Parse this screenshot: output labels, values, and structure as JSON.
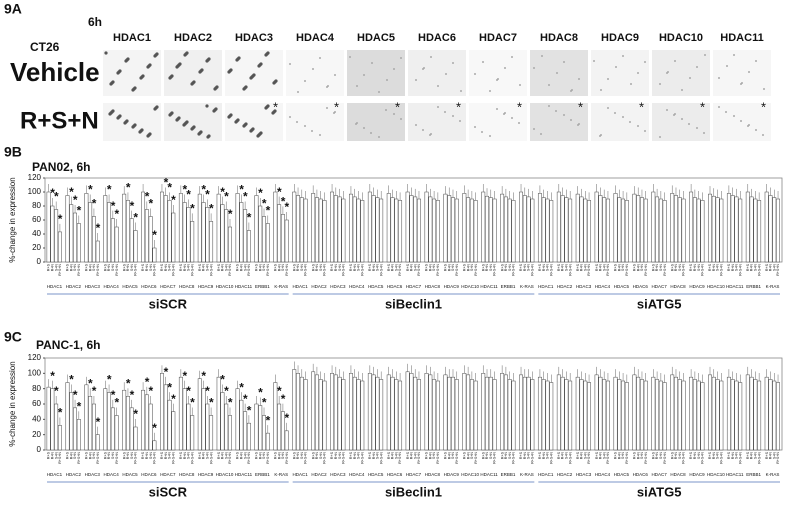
{
  "panel_a": {
    "label": "9A",
    "time": "6h",
    "cell_line": "CT26",
    "rows": [
      "Vehicle",
      "R+S+N"
    ],
    "columns": [
      "HDAC1",
      "HDAC2",
      "HDAC3",
      "HDAC4",
      "HDAC5",
      "HDAC6",
      "HDAC7",
      "HDAC8",
      "HDAC9",
      "HDAC10",
      "HDAC11"
    ],
    "star": "*",
    "starred_columns": [
      2,
      3,
      4,
      5,
      6,
      7,
      8,
      9,
      10
    ]
  },
  "chart_data": [
    {
      "type": "bar",
      "panel": "9B",
      "title": "PAN02, 6h",
      "ylabel": "%-change in expression",
      "ylim": [
        0,
        120
      ],
      "yticks": [
        0,
        20,
        40,
        60,
        80,
        100,
        120
      ],
      "groups": [
        "siSCR",
        "siBeclin1",
        "siATG5"
      ],
      "categories": [
        "HDAC1",
        "HDAC2",
        "HDAC3",
        "HDAC4",
        "HDAC5",
        "HDAC6",
        "HDAC7",
        "HDAC8",
        "HDAC9",
        "HDAC10",
        "HDAC11",
        "ERBB1",
        "K-RAS",
        "HDAC1",
        "HDAC2",
        "HDAC3",
        "HDAC4",
        "HDAC5",
        "HDAC6",
        "HDAC7",
        "HDAC8",
        "HDAC9",
        "HDAC10",
        "HDAC11",
        "ERBB1",
        "K-RAS",
        "HDAC1",
        "HDAC2",
        "HDAC3",
        "HDAC4",
        "HDAC5",
        "HDAC6",
        "HDAC7",
        "HDAC8",
        "HDAC9",
        "HDAC10",
        "HDAC11",
        "ERBB1",
        "K-RAS"
      ],
      "star": "*",
      "series": [
        {
          "name": "R+S",
          "color": "#ffffff",
          "starred": [],
          "values": [
            100,
            95,
            98,
            95,
            97,
            100,
            100,
            98,
            97,
            97,
            98,
            95,
            100,
            100,
            98,
            100,
            97,
            100,
            98,
            100,
            100,
            97,
            98,
            100,
            97,
            100,
            98,
            100,
            97,
            100,
            98,
            97,
            100,
            98,
            100,
            97,
            98,
            100,
            100
          ]
        },
        {
          "name": "R+N",
          "color": "#ffffff",
          "starred": [
            0,
            1,
            2,
            3,
            4,
            5,
            6,
            7,
            8,
            9,
            10,
            11,
            12
          ],
          "values": [
            80,
            82,
            85,
            85,
            88,
            75,
            95,
            85,
            85,
            82,
            85,
            80,
            82,
            95,
            92,
            95,
            93,
            95,
            92,
            95,
            93,
            95,
            92,
            94,
            93,
            95,
            92,
            95,
            93,
            95,
            92,
            95,
            93,
            95,
            92,
            94,
            95,
            93,
            95
          ]
        },
        {
          "name": "S+N",
          "color": "#ffffff",
          "starred": [
            0,
            1,
            2,
            3,
            4,
            5,
            6,
            7,
            8,
            9,
            10,
            11,
            12
          ],
          "values": [
            75,
            70,
            65,
            62,
            62,
            65,
            88,
            78,
            78,
            75,
            75,
            65,
            68,
            92,
            90,
            93,
            90,
            92,
            90,
            93,
            90,
            92,
            90,
            92,
            90,
            93,
            90,
            92,
            90,
            92,
            90,
            92,
            90,
            92,
            90,
            92,
            93,
            90,
            92
          ]
        },
        {
          "name": "R+S+N",
          "color": "#ffffff",
          "starred": [
            0,
            1,
            2,
            3,
            4,
            5,
            6,
            7,
            8,
            9,
            10,
            11,
            12
          ],
          "values": [
            43,
            55,
            30,
            50,
            45,
            20,
            70,
            58,
            58,
            50,
            45,
            55,
            60,
            90,
            88,
            90,
            88,
            90,
            88,
            90,
            88,
            90,
            88,
            90,
            88,
            90,
            88,
            90,
            88,
            90,
            88,
            90,
            88,
            90,
            88,
            90,
            90,
            88,
            90
          ]
        }
      ]
    },
    {
      "type": "bar",
      "panel": "9C",
      "title": "PANC-1, 6h",
      "ylabel": "%-change in expression",
      "ylim": [
        0,
        120
      ],
      "yticks": [
        0,
        20,
        40,
        60,
        80,
        100,
        120
      ],
      "groups": [
        "siSCR",
        "siBeclin1",
        "siATG5"
      ],
      "categories": [
        "HDAC1",
        "HDAC2",
        "HDAC3",
        "HDAC4",
        "HDAC5",
        "HDAC6",
        "HDAC7",
        "HDAC8",
        "HDAC9",
        "HDAC10",
        "HDAC11",
        "ERBB1",
        "K-RAS",
        "HDAC1",
        "HDAC2",
        "HDAC3",
        "HDAC4",
        "HDAC5",
        "HDAC6",
        "HDAC7",
        "HDAC8",
        "HDAC9",
        "HDAC10",
        "HDAC11",
        "ERBB1",
        "K-RAS",
        "HDAC1",
        "HDAC2",
        "HDAC3",
        "HDAC4",
        "HDAC5",
        "HDAC6",
        "HDAC7",
        "HDAC8",
        "HDAC9",
        "HDAC10",
        "HDAC11",
        "ERBB1",
        "K-RAS"
      ],
      "star": "*",
      "series": [
        {
          "name": "R+S",
          "color": "#ffffff",
          "starred": [],
          "values": [
            82,
            88,
            85,
            80,
            78,
            78,
            100,
            95,
            93,
            95,
            80,
            60,
            88,
            105,
            102,
            100,
            100,
            100,
            98,
            102,
            100,
            98,
            100,
            100,
            100,
            98,
            95,
            98,
            95,
            98,
            95,
            98,
            95,
            98,
            95,
            98,
            95,
            98,
            95
          ]
        },
        {
          "name": "R+N",
          "color": "#ffffff",
          "starred": [
            0,
            1,
            2,
            3,
            4,
            5,
            6,
            7,
            8,
            9,
            10,
            11,
            12
          ],
          "values": [
            80,
            75,
            70,
            75,
            70,
            72,
            85,
            80,
            80,
            75,
            65,
            58,
            60,
            100,
            98,
            98,
            95,
            98,
            95,
            100,
            98,
            95,
            98,
            95,
            98,
            95,
            92,
            95,
            92,
            95,
            92,
            95,
            92,
            95,
            92,
            95,
            92,
            95,
            92
          ]
        },
        {
          "name": "S+N",
          "color": "#ffffff",
          "starred": [
            0,
            1,
            2,
            3,
            4,
            5,
            6,
            7,
            8,
            9,
            10,
            11,
            12
          ],
          "values": [
            60,
            55,
            60,
            55,
            55,
            60,
            65,
            60,
            60,
            60,
            50,
            45,
            50,
            95,
            92,
            95,
            92,
            95,
            92,
            95,
            92,
            95,
            92,
            95,
            92,
            95,
            90,
            92,
            90,
            92,
            90,
            92,
            90,
            92,
            90,
            92,
            90,
            92,
            90
          ]
        },
        {
          "name": "R+S+N",
          "color": "#ffffff",
          "starred": [
            0,
            1,
            2,
            3,
            4,
            5,
            6,
            7,
            8,
            9,
            10,
            11,
            12
          ],
          "values": [
            32,
            40,
            20,
            45,
            30,
            12,
            50,
            45,
            45,
            45,
            35,
            22,
            25,
            92,
            90,
            92,
            90,
            92,
            90,
            92,
            90,
            92,
            90,
            92,
            90,
            92,
            88,
            90,
            88,
            90,
            88,
            90,
            88,
            90,
            88,
            90,
            88,
            90,
            88
          ]
        }
      ]
    }
  ]
}
